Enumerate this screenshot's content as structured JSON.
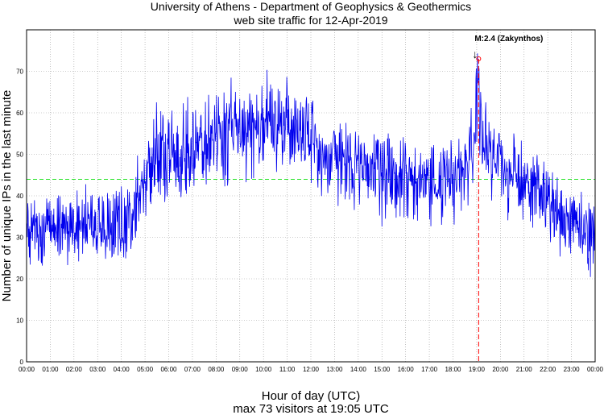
{
  "chart_data": {
    "type": "line",
    "title": "University of Athens - Department of Geophysics & Geothermics",
    "subtitle": "web site traffic for 12-Apr-2019",
    "xlabel": "Hour of day (UTC)",
    "ylabel": "Number of unique IPs in the last minute",
    "footer": "max 73 visitors at 19:05 UTC",
    "xlim": [
      0,
      24
    ],
    "ylim": [
      0,
      80
    ],
    "yticks": [
      0,
      10,
      20,
      30,
      40,
      50,
      60,
      70
    ],
    "xtick_labels": [
      "00:00",
      "01:00",
      "02:00",
      "03:00",
      "04:00",
      "05:00",
      "06:00",
      "07:00",
      "08:00",
      "09:00",
      "10:00",
      "11:00",
      "12:00",
      "13:00",
      "14:00",
      "15:00",
      "16:00",
      "17:00",
      "18:00",
      "19:00",
      "20:00",
      "21:00",
      "22:00",
      "23:00",
      "00:00"
    ],
    "grid": true,
    "series_color": "#0000ee",
    "hourly_mean": [
      [
        0,
        32
      ],
      [
        1,
        32
      ],
      [
        2,
        32
      ],
      [
        3,
        32
      ],
      [
        4,
        34
      ],
      [
        4.5,
        37
      ],
      [
        5,
        42
      ],
      [
        5.5,
        50
      ],
      [
        6,
        50
      ],
      [
        7,
        50
      ],
      [
        8,
        54
      ],
      [
        9,
        56
      ],
      [
        10,
        58
      ],
      [
        11,
        58
      ],
      [
        11.5,
        57
      ],
      [
        12,
        52
      ],
      [
        13,
        49
      ],
      [
        14,
        47
      ],
      [
        15,
        45
      ],
      [
        16,
        44
      ],
      [
        17,
        43
      ],
      [
        18,
        44
      ],
      [
        18.8,
        50
      ],
      [
        19.05,
        62
      ],
      [
        19.5,
        50
      ],
      [
        20,
        47
      ],
      [
        21,
        44
      ],
      [
        22,
        38
      ],
      [
        23,
        33
      ],
      [
        24,
        30
      ]
    ],
    "mean_line": {
      "value": 44,
      "color": "#00dd00"
    },
    "event": {
      "hour": 19.083,
      "peak_value": 73,
      "label": "M:2.4 (Zakynthos)",
      "arrow": "↓",
      "color": "#ff0000"
    }
  }
}
